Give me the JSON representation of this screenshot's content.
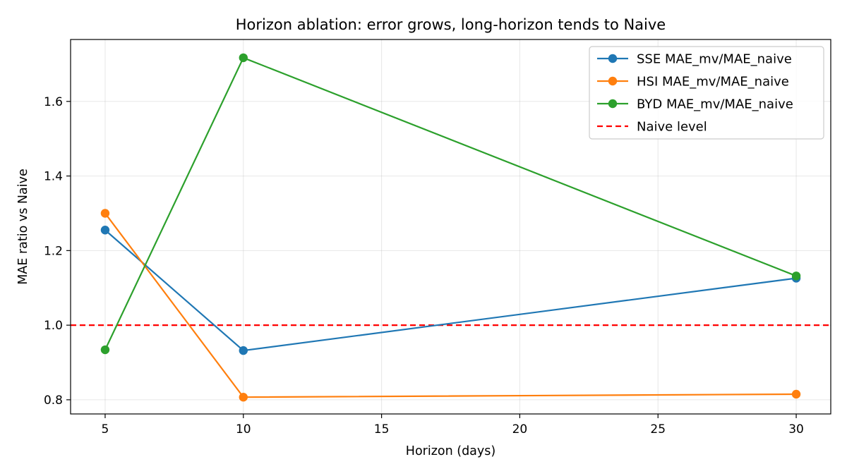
{
  "chart_data": {
    "type": "line",
    "title": "Horizon ablation: error grows, long-horizon tends to Naive",
    "xlabel": "Horizon (days)",
    "ylabel": "MAE ratio vs Naive",
    "x": [
      5,
      10,
      30
    ],
    "xlim": [
      3.75,
      31.25
    ],
    "ylim": [
      0.762,
      1.766
    ],
    "xticks": [
      5,
      10,
      15,
      20,
      25,
      30
    ],
    "yticks": [
      0.8,
      1.0,
      1.2,
      1.4,
      1.6
    ],
    "grid": true,
    "legend_position": "top-right",
    "series": [
      {
        "name": "SSE MAE_mv/MAE_naive",
        "color": "#1f77b4",
        "values": [
          1.255,
          0.932,
          1.126
        ]
      },
      {
        "name": "HSI MAE_mv/MAE_naive",
        "color": "#ff7f0e",
        "values": [
          1.3,
          0.807,
          0.815
        ]
      },
      {
        "name": "BYD MAE_mv/MAE_naive",
        "color": "#2ca02c",
        "values": [
          0.934,
          1.717,
          1.132
        ]
      }
    ],
    "reference_line": {
      "name": "Naive level",
      "y": 1.0,
      "color": "#ff0000",
      "style": "dashed"
    }
  }
}
